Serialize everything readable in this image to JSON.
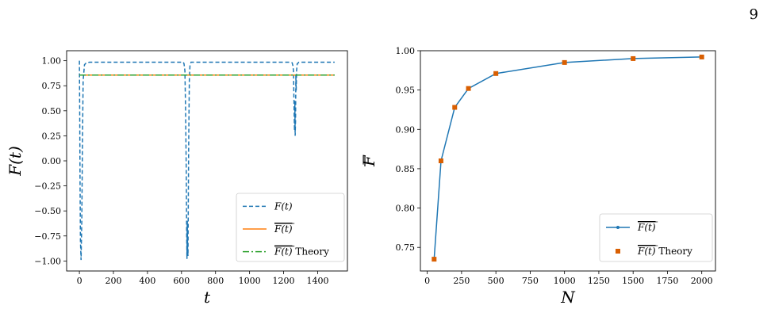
{
  "page": {
    "number": "9"
  },
  "chart_data": [
    {
      "type": "line",
      "xlabel": "t",
      "ylabel": "F(t)",
      "xlim": [
        -75,
        1575
      ],
      "ylim": [
        -1.1,
        1.1
      ],
      "xticks": [
        0,
        200,
        400,
        600,
        800,
        1000,
        1200,
        1400
      ],
      "yticks": [
        1.0,
        0.75,
        0.5,
        0.25,
        0.0,
        -0.25,
        -0.5,
        -0.75,
        -1.0
      ],
      "ytick_labels": [
        "1.00",
        "0.75",
        "0.50",
        "0.25",
        "0.00",
        "−0.25",
        "−0.50",
        "−0.75",
        "−1.00"
      ],
      "legend_position": "lower right",
      "series": [
        {
          "name": "F(t)",
          "style": "dashed",
          "color": "#1f77b4",
          "x": [
            0,
            2,
            4,
            6,
            10,
            14,
            18,
            22,
            30,
            40,
            60,
            100,
            200,
            400,
            600,
            610,
            615,
            620,
            624,
            628,
            630,
            632,
            634,
            636,
            638,
            640,
            642,
            644,
            646,
            650,
            656,
            662,
            680,
            720,
            800,
            1000,
            1200,
            1240,
            1250,
            1255,
            1258,
            1260,
            1262,
            1264,
            1266,
            1268,
            1270,
            1272,
            1274,
            1276,
            1280,
            1290,
            1300,
            1320,
            1400,
            1500
          ],
          "y": [
            1.0,
            0.5,
            -0.2,
            -0.8,
            -0.99,
            -0.6,
            0.2,
            0.8,
            0.96,
            0.98,
            0.985,
            0.985,
            0.985,
            0.985,
            0.985,
            0.985,
            0.97,
            0.9,
            0.5,
            -0.1,
            -0.7,
            -0.98,
            -0.6,
            -0.9,
            -0.95,
            -0.4,
            0.1,
            0.5,
            0.8,
            0.95,
            0.985,
            0.985,
            0.985,
            0.985,
            0.985,
            0.985,
            0.985,
            0.985,
            0.98,
            0.95,
            0.9,
            0.7,
            0.5,
            0.3,
            0.6,
            0.25,
            0.4,
            0.85,
            0.7,
            0.9,
            0.97,
            0.985,
            0.985,
            0.985,
            0.985,
            0.985
          ]
        },
        {
          "name": "F(t)",
          "overline": true,
          "style": "solid",
          "color": "#ff7f0e",
          "x": [
            0,
            1500
          ],
          "y": [
            0.857,
            0.857
          ]
        },
        {
          "name": "F(t)",
          "overline": true,
          "suffix": "Theory",
          "style": "dashdot",
          "color": "#2ca02c",
          "x": [
            0,
            1500
          ],
          "y": [
            0.857,
            0.857
          ]
        }
      ]
    },
    {
      "type": "line",
      "xlabel": "N",
      "ylabel": "F",
      "ylabel_overline": true,
      "xlim": [
        -50,
        2100
      ],
      "ylim": [
        0.72,
        1.0
      ],
      "xticks": [
        0,
        250,
        500,
        750,
        1000,
        1250,
        1500,
        1750,
        2000
      ],
      "yticks": [
        1.0,
        0.95,
        0.9,
        0.85,
        0.8,
        0.75
      ],
      "ytick_labels": [
        "1.00",
        "0.95",
        "0.90",
        "0.85",
        "0.80",
        "0.75"
      ],
      "legend_position": "lower right",
      "series": [
        {
          "name": "F(t)",
          "overline": true,
          "style": "solid-dot",
          "color": "#1f77b4",
          "x": [
            50,
            100,
            200,
            300,
            500,
            1000,
            1500,
            2000
          ],
          "y": [
            0.735,
            0.86,
            0.928,
            0.952,
            0.971,
            0.985,
            0.99,
            0.992
          ]
        },
        {
          "name": "F(t)",
          "overline": true,
          "suffix": "Theory",
          "style": "square-marker",
          "color": "#d95f02",
          "x": [
            50,
            100,
            200,
            300,
            500,
            1000,
            1500,
            2000
          ],
          "y": [
            0.735,
            0.86,
            0.928,
            0.952,
            0.971,
            0.985,
            0.99,
            0.992
          ]
        }
      ]
    }
  ]
}
